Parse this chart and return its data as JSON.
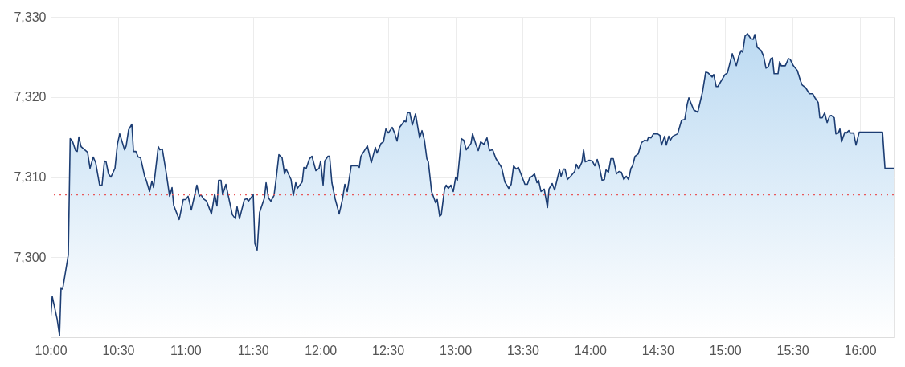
{
  "chart_data": {
    "type": "area",
    "x": [
      10.0,
      10.012,
      10.048,
      10.066,
      10.077,
      10.089,
      10.131,
      10.145,
      10.161,
      10.185,
      10.197,
      10.209,
      10.226,
      10.274,
      10.292,
      10.316,
      10.334,
      10.363,
      10.381,
      10.399,
      10.411,
      10.429,
      10.447,
      10.477,
      10.495,
      10.512,
      10.548,
      10.56,
      10.578,
      10.602,
      10.614,
      10.632,
      10.649,
      10.667,
      10.697,
      10.709,
      10.733,
      10.751,
      10.763,
      10.798,
      10.81,
      10.828,
      10.858,
      10.882,
      10.9,
      10.912,
      10.953,
      10.983,
      11.001,
      11.019,
      11.043,
      11.084,
      11.102,
      11.114,
      11.132,
      11.156,
      11.192,
      11.216,
      11.233,
      11.245,
      11.263,
      11.275,
      11.299,
      11.347,
      11.37,
      11.382,
      11.4,
      11.436,
      11.454,
      11.466,
      11.502,
      11.514,
      11.531,
      11.549,
      11.585,
      11.597,
      11.615,
      11.633,
      11.656,
      11.674,
      11.692,
      11.716,
      11.734,
      11.746,
      11.782,
      11.799,
      11.817,
      11.829,
      11.865,
      11.877,
      11.895,
      11.919,
      11.937,
      11.966,
      11.99,
      12.002,
      12.02,
      12.032,
      12.056,
      12.068,
      12.085,
      12.109,
      12.139,
      12.163,
      12.181,
      12.199,
      12.228,
      12.276,
      12.288,
      12.3,
      12.348,
      12.377,
      12.407,
      12.419,
      12.449,
      12.467,
      12.485,
      12.503,
      12.532,
      12.55,
      12.568,
      12.586,
      12.622,
      12.634,
      12.646,
      12.663,
      12.681,
      12.705,
      12.735,
      12.753,
      12.771,
      12.789,
      12.8,
      12.824,
      12.854,
      12.866,
      12.884,
      12.896,
      12.92,
      12.932,
      12.949,
      12.967,
      12.985,
      13.003,
      13.015,
      13.045,
      13.063,
      13.081,
      13.116,
      13.128,
      13.152,
      13.17,
      13.188,
      13.212,
      13.235,
      13.253,
      13.277,
      13.301,
      13.343,
      13.367,
      13.396,
      13.414,
      13.432,
      13.45,
      13.468,
      13.516,
      13.534,
      13.551,
      13.569,
      13.587,
      13.605,
      13.617,
      13.635,
      13.659,
      13.683,
      13.694,
      13.718,
      13.736,
      13.772,
      13.784,
      13.802,
      13.813,
      13.831,
      13.855,
      13.885,
      13.897,
      13.915,
      13.939,
      13.951,
      13.963,
      13.992,
      14.016,
      14.034,
      14.052,
      14.07,
      14.088,
      14.105,
      14.117,
      14.135,
      14.153,
      14.171,
      14.195,
      14.213,
      14.231,
      14.249,
      14.267,
      14.284,
      14.302,
      14.314,
      14.332,
      14.356,
      14.38,
      14.403,
      14.421,
      14.433,
      14.451,
      14.469,
      14.499,
      14.517,
      14.528,
      14.552,
      14.564,
      14.582,
      14.594,
      14.612,
      14.648,
      14.677,
      14.701,
      14.719,
      14.731,
      14.767,
      14.797,
      14.832,
      14.856,
      14.874,
      14.904,
      14.916,
      14.934,
      14.946,
      14.999,
      15.017,
      15.053,
      15.083,
      15.101,
      15.119,
      15.13,
      15.148,
      15.166,
      15.19,
      15.208,
      15.22,
      15.238,
      15.267,
      15.285,
      15.303,
      15.321,
      15.339,
      15.351,
      15.363,
      15.392,
      15.404,
      15.416,
      15.446,
      15.47,
      15.482,
      15.506,
      15.535,
      15.559,
      15.571,
      15.595,
      15.625,
      15.649,
      15.666,
      15.69,
      15.702,
      15.72,
      15.738,
      15.756,
      15.774,
      15.786,
      15.809,
      15.821,
      15.839,
      15.851,
      15.863,
      15.887,
      15.899,
      15.917,
      15.929,
      15.953,
      15.97,
      15.994,
      16.167,
      16.185,
      16.25
    ],
    "series": [
      {
        "color": "#1c3d73",
        "values": [
          7292.3,
          7295.1,
          7292.3,
          7290.2,
          7296.1,
          7296.0,
          7300.3,
          7314.8,
          7314.5,
          7313.3,
          7313.2,
          7315.0,
          7313.8,
          7313.1,
          7311.1,
          7312.5,
          7311.8,
          7309.0,
          7309.0,
          7312.0,
          7311.9,
          7310.4,
          7310.0,
          7311.1,
          7314.1,
          7315.4,
          7313.4,
          7313.9,
          7315.9,
          7316.6,
          7313.2,
          7313.2,
          7312.5,
          7312.4,
          7310.1,
          7309.6,
          7308.2,
          7309.5,
          7308.7,
          7313.8,
          7313.4,
          7313.5,
          7310.4,
          7307.6,
          7308.7,
          7306.5,
          7304.7,
          7307.2,
          7307.2,
          7307.6,
          7305.9,
          7309.0,
          7307.6,
          7307.8,
          7307.3,
          7307.0,
          7305.4,
          7307.9,
          7306.4,
          7309.6,
          7309.6,
          7307.8,
          7309.1,
          7305.3,
          7304.8,
          7306.3,
          7304.8,
          7307.2,
          7307.3,
          7307.0,
          7307.8,
          7301.7,
          7300.9,
          7305.6,
          7307.4,
          7309.3,
          7307.4,
          7307.0,
          7307.7,
          7310.1,
          7312.8,
          7312.4,
          7310.4,
          7311.0,
          7309.7,
          7307.7,
          7309.3,
          7308.6,
          7309.4,
          7311.2,
          7311.1,
          7312.3,
          7312.6,
          7310.8,
          7311.1,
          7312.0,
          7309.0,
          7312.0,
          7312.6,
          7312.6,
          7309.3,
          7307.3,
          7305.4,
          7307.2,
          7309.1,
          7308.2,
          7311.4,
          7311.4,
          7311.2,
          7312.6,
          7313.9,
          7311.8,
          7313.7,
          7313.0,
          7314.2,
          7314.4,
          7316.0,
          7315.5,
          7316.2,
          7315.5,
          7314.5,
          7316.2,
          7317.0,
          7316.9,
          7318.1,
          7318.0,
          7316.5,
          7317.9,
          7314.9,
          7315.8,
          7314.6,
          7312.3,
          7311.9,
          7308.2,
          7306.8,
          7307.2,
          7305.1,
          7305.3,
          7308.5,
          7309.0,
          7308.6,
          7309.0,
          7308.2,
          7310.0,
          7309.6,
          7314.8,
          7314.6,
          7313.4,
          7314.2,
          7315.4,
          7314.1,
          7313.3,
          7314.4,
          7314.1,
          7314.9,
          7313.3,
          7313.4,
          7312.3,
          7311.2,
          7309.4,
          7308.6,
          7309.1,
          7311.4,
          7311.0,
          7311.2,
          7309.1,
          7309.1,
          7309.9,
          7310.1,
          7310.4,
          7309.3,
          7309.6,
          7308.2,
          7308.5,
          7306.2,
          7308.5,
          7309.2,
          7308.4,
          7310.9,
          7310.1,
          7311.0,
          7311.0,
          7309.7,
          7310.1,
          7310.7,
          7311.6,
          7311.0,
          7311.9,
          7313.4,
          7311.9,
          7312.1,
          7312.0,
          7311.4,
          7312.2,
          7311.1,
          7309.6,
          7309.7,
          7310.9,
          7310.6,
          7312.3,
          7312.3,
          7310.4,
          7310.7,
          7310.6,
          7309.7,
          7310.1,
          7309.7,
          7311.1,
          7311.4,
          7312.6,
          7312.9,
          7314.3,
          7314.6,
          7314.5,
          7315.0,
          7314.9,
          7315.4,
          7315.4,
          7315.2,
          7314.0,
          7315.1,
          7314.0,
          7315.1,
          7314.6,
          7315.1,
          7315.4,
          7317.1,
          7317.2,
          7319.1,
          7319.9,
          7318.4,
          7318.1,
          7320.6,
          7323.1,
          7323.0,
          7322.5,
          7322.8,
          7321.3,
          7321.3,
          7322.8,
          7323.0,
          7325.4,
          7323.9,
          7325.1,
          7325.8,
          7325.6,
          7327.6,
          7327.9,
          7327.3,
          7327.2,
          7327.8,
          7326.2,
          7325.8,
          7325.1,
          7323.6,
          7323.8,
          7324.8,
          7324.9,
          7322.9,
          7322.9,
          7324.4,
          7323.9,
          7323.9,
          7324.8,
          7324.7,
          7323.9,
          7323.3,
          7322.0,
          7321.5,
          7321.2,
          7320.4,
          7320.4,
          7319.9,
          7319.3,
          7317.4,
          7317.4,
          7318.0,
          7316.8,
          7317.6,
          7317.7,
          7317.4,
          7315.4,
          7315.5,
          7316.0,
          7314.4,
          7315.6,
          7315.5,
          7315.8,
          7315.5,
          7315.5,
          7314.0,
          7315.6,
          7315.6,
          7311.1,
          7311.1
        ]
      }
    ],
    "xlim": [
      10,
      16.25
    ],
    "xticks": [
      {
        "value": 10,
        "label": "10:00"
      },
      {
        "value": 10.5,
        "label": "10:30"
      },
      {
        "value": 11,
        "label": "11:00"
      },
      {
        "value": 11.5,
        "label": "11:30"
      },
      {
        "value": 12,
        "label": "12:00"
      },
      {
        "value": 12.5,
        "label": "12:30"
      },
      {
        "value": 13,
        "label": "13:00"
      },
      {
        "value": 13.5,
        "label": "13:30"
      },
      {
        "value": 14,
        "label": "14:00"
      },
      {
        "value": 14.5,
        "label": "14:30"
      },
      {
        "value": 15,
        "label": "15:00"
      },
      {
        "value": 15.5,
        "label": "15:30"
      },
      {
        "value": 16,
        "label": "16:00"
      }
    ],
    "ylim": [
      7290,
      7330
    ],
    "yticks": [
      {
        "value": 7300,
        "label": "7,300"
      },
      {
        "value": 7310,
        "label": "7,310"
      },
      {
        "value": 7320,
        "label": "7,320"
      },
      {
        "value": 7330,
        "label": "7,330"
      }
    ],
    "grid": true,
    "ref_lines": [
      {
        "axis": "y",
        "value": 7307.8,
        "color": "#e8585a",
        "line_style": "dotted"
      }
    ]
  }
}
